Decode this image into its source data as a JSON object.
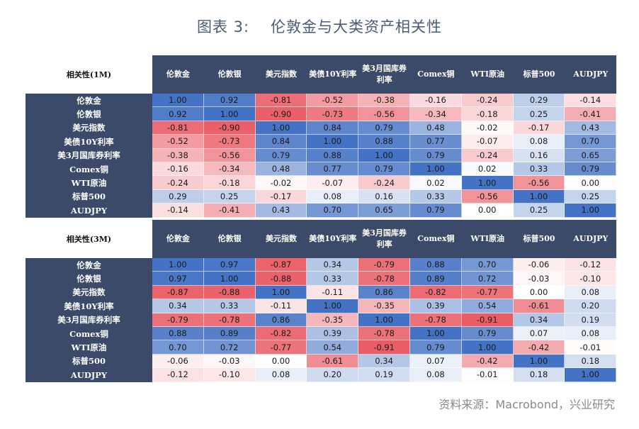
{
  "title": {
    "prefix": "图表 3:",
    "text": "伦敦金与大类资产相关性"
  },
  "source": "资料来源：Macrobond，兴业研究",
  "chart_data": {
    "type": "heatmap",
    "columns": [
      "伦敦金",
      "伦敦银",
      "美元指数",
      "美债10Y利率",
      "美3月国库券利率",
      "Comex铜",
      "WTI原油",
      "标普500",
      "AUDJPY"
    ],
    "rows": [
      "伦敦金",
      "伦敦银",
      "美元指数",
      "美债10Y利率",
      "美3月国库券利率",
      "Comex铜",
      "WTI原油",
      "标普500",
      "AUDJPY"
    ],
    "tables": [
      {
        "label": "相关性(1M)",
        "values": [
          [
            "1.00",
            "0.92",
            "-0.81",
            "-0.52",
            "-0.38",
            "-0.16",
            "-0.24",
            "0.29",
            "-0.14"
          ],
          [
            "0.92",
            "1.00",
            "-0.90",
            "-0.73",
            "-0.56",
            "-0.34",
            "-0.18",
            "0.25",
            "-0.41"
          ],
          [
            "-0.81",
            "-0.90",
            "1.00",
            "0.84",
            "0.79",
            "0.48",
            "-0.02",
            "-0.17",
            "0.43"
          ],
          [
            "-0.52",
            "-0.73",
            "0.84",
            "1.00",
            "0.88",
            "0.77",
            "-0.07",
            "0.08",
            "0.70"
          ],
          [
            "-0.38",
            "-0.56",
            "0.79",
            "0.88",
            "1.00",
            "0.79",
            "-0.24",
            "0.16",
            "0.65"
          ],
          [
            "-0.16",
            "-0.34",
            "0.48",
            "0.77",
            "0.79",
            "1.00",
            "0.02",
            "0.33",
            "0.79"
          ],
          [
            "-0.24",
            "-0.18",
            "-0.02",
            "-0.07",
            "-0.24",
            "0.02",
            "1.00",
            "-0.56",
            "0.00"
          ],
          [
            "0.29",
            "0.25",
            "-0.17",
            "0.08",
            "0.16",
            "0.33",
            "-0.56",
            "1.00",
            "0.25"
          ],
          [
            "-0.14",
            "-0.41",
            "0.43",
            "0.70",
            "0.65",
            "0.79",
            "0.00",
            "0.25",
            "1.00"
          ]
        ]
      },
      {
        "label": "相关性(3M)",
        "values": [
          [
            "1.00",
            "0.97",
            "-0.87",
            "0.34",
            "-0.79",
            "0.88",
            "0.70",
            "-0.06",
            "-0.12"
          ],
          [
            "0.97",
            "1.00",
            "-0.88",
            "0.33",
            "-0.78",
            "0.89",
            "0.72",
            "-0.03",
            "-0.10"
          ],
          [
            "-0.87",
            "-0.88",
            "1.00",
            "-0.11",
            "0.86",
            "-0.82",
            "-0.77",
            "0.00",
            "0.08"
          ],
          [
            "0.34",
            "0.33",
            "-0.11",
            "1.00",
            "-0.35",
            "0.39",
            "0.54",
            "-0.61",
            "0.20"
          ],
          [
            "-0.79",
            "-0.78",
            "0.86",
            "-0.35",
            "1.00",
            "-0.78",
            "-0.91",
            "0.34",
            "0.19"
          ],
          [
            "0.88",
            "0.89",
            "-0.82",
            "0.39",
            "-0.78",
            "1.00",
            "0.79",
            "0.07",
            "0.08"
          ],
          [
            "0.70",
            "0.72",
            "-0.77",
            "0.54",
            "-0.91",
            "0.79",
            "1.00",
            "-0.42",
            "-0.01"
          ],
          [
            "-0.06",
            "-0.03",
            "0.00",
            "-0.61",
            "0.34",
            "0.07",
            "-0.42",
            "1.00",
            "0.18"
          ],
          [
            "-0.12",
            "-0.10",
            "0.08",
            "0.20",
            "0.19",
            "0.08",
            "-0.01",
            "0.18",
            "1.00"
          ]
        ]
      }
    ],
    "color_scale": {
      "negative": "#e8505a",
      "zero": "#ffffff",
      "positive": "#4472c4",
      "range": [
        -1,
        1
      ]
    }
  }
}
